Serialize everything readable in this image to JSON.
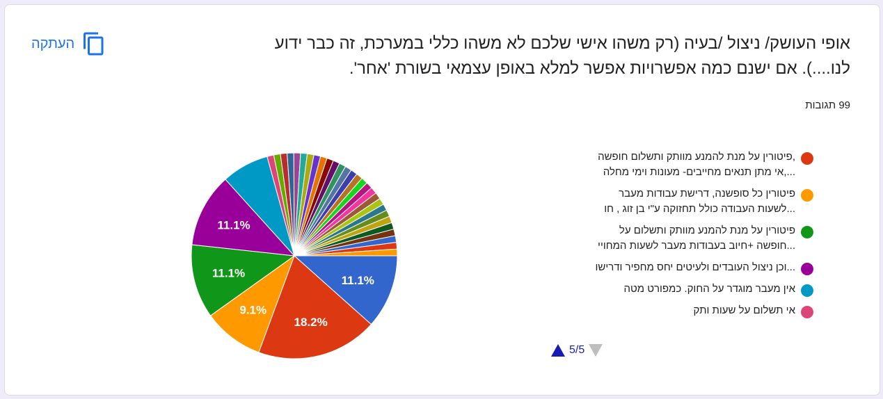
{
  "question": {
    "title_line1": "אופי העושק/ ניצול /בעיה (רק משהו אישי שלכם לא משהו כללי במערכת, זה כבר ידוע",
    "title_line2": "לנו....).  אם ישנם כמה אפשרויות אפשר למלא באופן עצמאי בשורת 'אחר'.",
    "responses": "99 תגובות"
  },
  "copy": {
    "label": "העתקה",
    "icon": "copy-icon"
  },
  "pager": {
    "text": "5/5"
  },
  "colors": {
    "slices": [
      "#3366cc",
      "#dc3912",
      "#ff9900",
      "#109618",
      "#990099",
      "#0099c6",
      "#dd4477",
      "#66aa00",
      "#b82e2e",
      "#316395",
      "#994499",
      "#22aa99",
      "#aaaa11",
      "#6633cc",
      "#e67300",
      "#8b0707",
      "#651067",
      "#329262",
      "#5574a6",
      "#3b3eac",
      "#b77322",
      "#16d620",
      "#b91383",
      "#f4359e",
      "#9c5935",
      "#a9c413",
      "#2a778d",
      "#668d1c",
      "#bea413",
      "#0c5922",
      "#743411"
    ]
  },
  "chart_data": {
    "type": "pie",
    "total_responses": 99,
    "slices": [
      {
        "label": "",
        "value": 11.1,
        "display": "11.1%"
      },
      {
        "label": "פיטורין על מנת להמנע מוותק ותשלום חופשה ,אי מתן תנאים מחייבים- מעונות וימי מחלה",
        "value": 18.2,
        "display": "18.2%"
      },
      {
        "label": "פיטורין כל סופשנה, דרישת עבודות מעבר לשעות העבודה כולל תחזוקה ע\"י בן זוג , חו",
        "value": 9.1,
        "display": "9.1%"
      },
      {
        "label": "פיטורין על מנת להמנע מוותק ותשלום על חופשה +חיוב בעבודות מעבר לשעות המחויי",
        "value": 11.1,
        "display": "11.1%"
      },
      {
        "label": "וכן ניצול העובדים ולעיטים יחס מחפיר ודרישו",
        "value": 11.1,
        "display": "11.1%"
      },
      {
        "label": "אין מעבר מוגדר על החוק. כמפורט מטה",
        "value": 7.1,
        "display": ""
      },
      {
        "label": "אי תשלום על שעות ותק",
        "value": 1.0,
        "display": ""
      },
      {
        "label": "",
        "value": 1.0,
        "display": ""
      },
      {
        "label": "",
        "value": 1.0,
        "display": ""
      },
      {
        "label": "",
        "value": 1.0,
        "display": ""
      },
      {
        "label": "",
        "value": 1.0,
        "display": ""
      },
      {
        "label": "",
        "value": 1.0,
        "display": ""
      },
      {
        "label": "",
        "value": 1.0,
        "display": ""
      },
      {
        "label": "",
        "value": 1.0,
        "display": ""
      },
      {
        "label": "",
        "value": 1.0,
        "display": ""
      },
      {
        "label": "",
        "value": 1.0,
        "display": ""
      },
      {
        "label": "",
        "value": 1.0,
        "display": ""
      },
      {
        "label": "",
        "value": 1.0,
        "display": ""
      },
      {
        "label": "",
        "value": 1.0,
        "display": ""
      },
      {
        "label": "",
        "value": 1.0,
        "display": ""
      },
      {
        "label": "",
        "value": 1.0,
        "display": ""
      },
      {
        "label": "",
        "value": 1.0,
        "display": ""
      },
      {
        "label": "",
        "value": 1.0,
        "display": ""
      },
      {
        "label": "",
        "value": 1.0,
        "display": ""
      },
      {
        "label": "",
        "value": 1.0,
        "display": ""
      },
      {
        "label": "",
        "value": 1.0,
        "display": ""
      },
      {
        "label": "",
        "value": 1.0,
        "display": ""
      },
      {
        "label": "",
        "value": 1.0,
        "display": ""
      },
      {
        "label": "",
        "value": 1.0,
        "display": ""
      },
      {
        "label": "",
        "value": 1.0,
        "display": ""
      },
      {
        "label": "",
        "value": 1.0,
        "display": ""
      },
      {
        "label": "",
        "value": 1.0,
        "display": ""
      },
      {
        "label": "",
        "value": 1.0,
        "display": ""
      },
      {
        "label": "",
        "value": 1.0,
        "display": ""
      }
    ],
    "legend": [
      {
        "line1": ",פיטורין על מנת להמנע מוותק ותשלום חופשה",
        "line2": "...,אי מתן תנאים מחייבים- מעונות וימי מחלה",
        "color": "#dc3912"
      },
      {
        "line1": "פיטורין כל סופשנה, דרישת עבודות מעבר",
        "line2": "...לשעות העבודה כולל תחזוקה ע\"י בן זוג , חו",
        "color": "#ff9900"
      },
      {
        "line1": "פיטורין על מנת להמנע מוותק ותשלום על",
        "line2": "...חופשה +חיוב בעבודות מעבר לשעות המחויי",
        "color": "#109618"
      },
      {
        "line1": "...וכן ניצול העובדים ולעיטים יחס מחפיר ודרישו",
        "line2": "",
        "color": "#990099"
      },
      {
        "line1": "אין מעבר מוגדר על החוק. כמפורט מטה",
        "line2": "",
        "color": "#0099c6"
      },
      {
        "line1": "אי תשלום על שעות ותק",
        "line2": "",
        "color": "#dd4477"
      }
    ]
  }
}
